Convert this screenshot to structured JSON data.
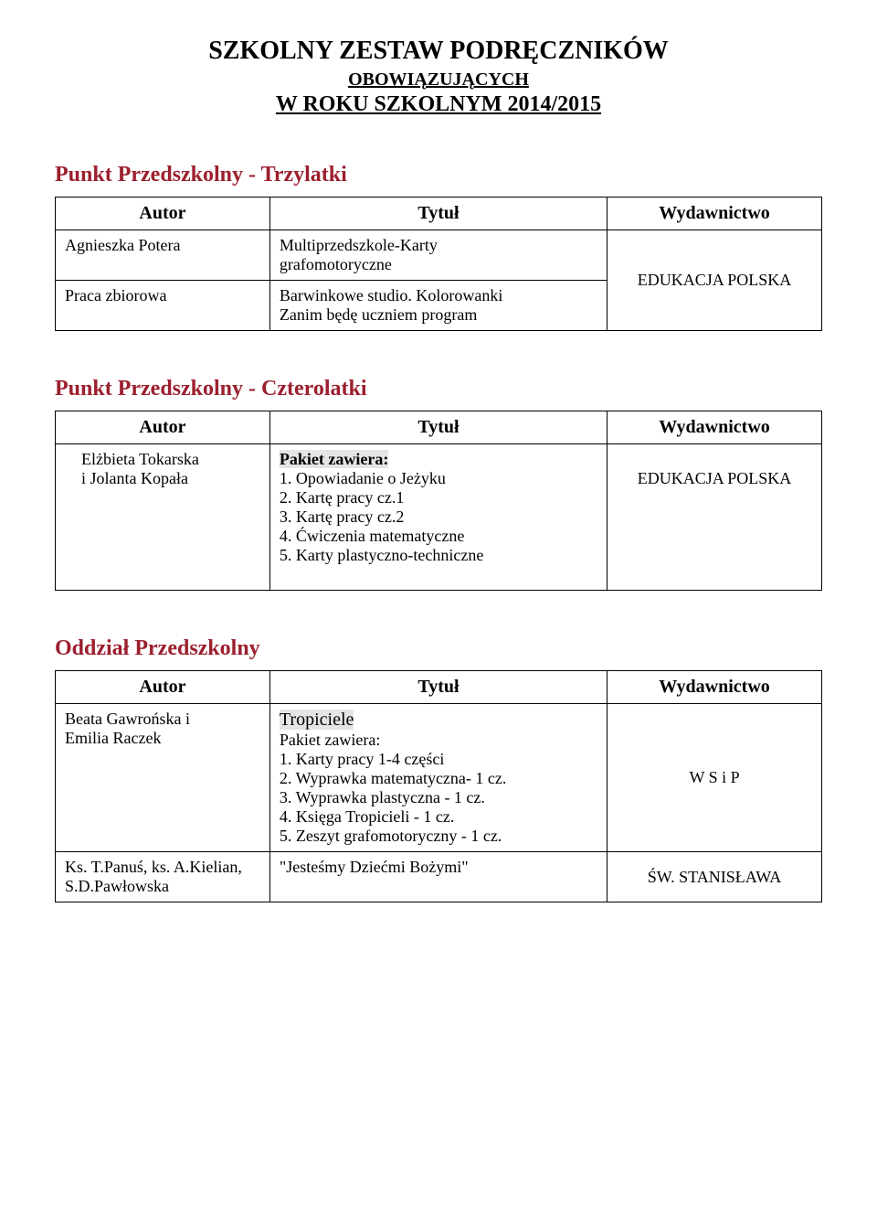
{
  "colors": {
    "section_title": "#9c1f2e",
    "highlight_bg": "#e5e5e5",
    "text": "#000000",
    "bg": "#ffffff",
    "border": "#000000"
  },
  "header": {
    "title": "SZKOLNY ZESTAW PODRĘCZNIKÓW",
    "subtitle1": "OBOWIĄZUJĄCYCH",
    "subtitle2": "W  ROKU  SZKOLNYM  2014/2015"
  },
  "table_headers": {
    "author": "Autor",
    "title": "Tytuł",
    "publisher": "Wydawnictwo"
  },
  "section1": {
    "heading": "Punkt Przedszkolny - Trzylatki",
    "rows": [
      {
        "author": "Agnieszka Potera",
        "title_line1": "Multiprzedszkole-Karty",
        "title_line2": "grafomotoryczne"
      },
      {
        "author": "Praca zbiorowa",
        "title_line1": "Barwinkowe studio. Kolorowanki",
        "title_line2": "Zanim będę uczniem program"
      }
    ],
    "publisher": "EDUKACJA POLSKA"
  },
  "section2": {
    "heading": "Punkt Przedszkolny - Czterolatki",
    "author_line1": "Elżbieta Tokarska",
    "author_line2": "i Jolanta Kopała",
    "pakiet_label": "Pakiet zawiera:",
    "items": [
      "Opowiadanie o Jeżyku",
      "Kartę pracy cz.1",
      "Kartę pracy cz.2",
      "Ćwiczenia matematyczne",
      "Karty plastyczno-techniczne"
    ],
    "publisher": "EDUKACJA POLSKA"
  },
  "section3": {
    "heading": "Oddział Przedszkolny",
    "row1": {
      "author_line1": "Beata Gawrońska i",
      "author_line2": " Emilia Raczek",
      "title_heading": "Tropiciele",
      "pakiet_label": "Pakiet zawiera:",
      "items": [
        "Karty pracy 1-4 części",
        "Wyprawka matematyczna- 1 cz.",
        "Wyprawka plastyczna - 1 cz.",
        "Księga Tropicieli - 1 cz.",
        "Zeszyt grafomotoryczny - 1 cz."
      ],
      "publisher": "W S i P"
    },
    "row2": {
      "author_line1": "Ks. T.Panuś, ks. A.Kielian,",
      "author_line2": "S.D.Pawłowska",
      "title": "\"Jesteśmy Dziećmi Bożymi\"",
      "publisher": "ŚW. STANISŁAWA"
    }
  }
}
